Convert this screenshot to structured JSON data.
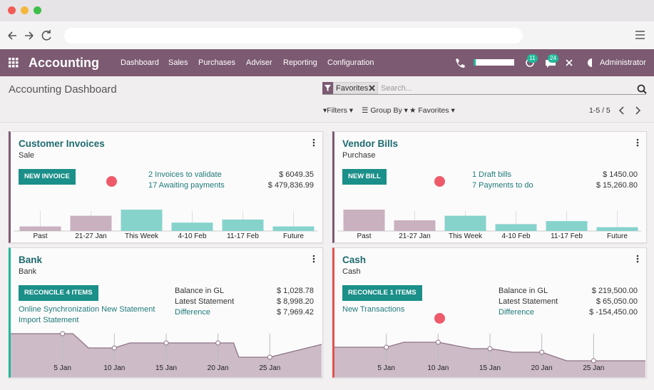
{
  "navbar": {
    "app": "Accounting",
    "menu": [
      "Dashboard",
      "Sales",
      "Purchases",
      "Adviser",
      "Reporting",
      "Configuration"
    ],
    "badges": [
      11,
      24
    ],
    "user": "Administrator"
  },
  "control_panel": {
    "title": "Accounting Dashboard",
    "facet": "Favorites",
    "search_placeholder": "Search...",
    "filters": [
      "Filters",
      "Group By",
      "Favorites"
    ],
    "pager": "1-5 / 5"
  },
  "journals": [
    {
      "name": "Customer Invoices",
      "type": "Sale",
      "accent": "#7c5a72",
      "button": "NEW INVOICE",
      "links": [],
      "rows": [
        {
          "label": "2 Invoices to validate",
          "amount": "$ 6049.35",
          "link": true
        },
        {
          "label": "17 Awaiting payments",
          "amount": "$ 479,836.99",
          "link": true
        }
      ],
      "chart": {
        "type": "bar",
        "categories": [
          "Past",
          "21-27 Jan",
          "This Week",
          "4-10 Feb",
          "11-17 Feb",
          "Future"
        ],
        "values": [
          6,
          20,
          28,
          11,
          15,
          6
        ],
        "colors": [
          "#c9b1bf",
          "#c9b1bf",
          "#86d3cc",
          "#86d3cc",
          "#86d3cc",
          "#86d3cc"
        ]
      }
    },
    {
      "name": "Vendor Bills",
      "type": "Purchase",
      "accent": "#7c5a72",
      "button": "NEW BILL",
      "links": [],
      "rows": [
        {
          "label": "1 Draft bills",
          "amount": "$ 1450.00",
          "link": true
        },
        {
          "label": "7 Payments to do",
          "amount": "$ 15,260.80",
          "link": true
        }
      ],
      "chart": {
        "type": "bar",
        "categories": [
          "Past",
          "21-27 Jan",
          "This Week",
          "4-10 Feb",
          "11-17 Feb",
          "Future"
        ],
        "values": [
          28,
          14,
          20,
          9,
          13,
          5
        ],
        "colors": [
          "#c9b1bf",
          "#c9b1bf",
          "#86d3cc",
          "#86d3cc",
          "#86d3cc",
          "#86d3cc"
        ]
      }
    },
    {
      "name": "Bank",
      "type": "Bank",
      "accent": "#21b799",
      "button": "RECONCILE 4 ITEMS",
      "links": [
        "Online Synchronization New Statement",
        "Import Statement"
      ],
      "rows": [
        {
          "label": "Balance in GL",
          "amount": "$ 1,028.78",
          "link": false
        },
        {
          "label": "Latest Statement",
          "amount": "$ 8,998.20",
          "link": false
        },
        {
          "label": "Difference",
          "amount": "$ 7,969.42",
          "link": true
        }
      ],
      "chart": {
        "type": "line",
        "x": [
          0,
          5,
          6,
          7.5,
          10,
          11.5,
          15,
          20,
          21.5,
          22,
          25,
          30
        ],
        "values": [
          61,
          61,
          61,
          41,
          41,
          48,
          48,
          48,
          48,
          28,
          28,
          46
        ],
        "xlim": [
          0,
          30
        ],
        "ylim": [
          0,
          72
        ],
        "xticks": [
          {
            "value": 5,
            "label": "5 Jan"
          },
          {
            "value": 10,
            "label": "10 Jan"
          },
          {
            "value": 15,
            "label": "15 Jan"
          },
          {
            "value": 20,
            "label": "20 Jan"
          },
          {
            "value": 25,
            "label": "25 Jan"
          }
        ],
        "color": "#8e7385",
        "fill": "#cdbcc7"
      }
    },
    {
      "name": "Cash",
      "type": "Cash",
      "accent": "#e0544f",
      "button": "RECONCILE 1 ITEMS",
      "links": [
        "New Transactions"
      ],
      "rows": [
        {
          "label": "Balance in GL",
          "amount": "$ 219,500.00",
          "link": false
        },
        {
          "label": "Latest Statement",
          "amount": "$ 65,050.00",
          "link": false
        },
        {
          "label": "Difference",
          "amount": "$ -154,450.00",
          "link": true
        }
      ],
      "chart": {
        "type": "line",
        "x": [
          0,
          5,
          6.7,
          10,
          13.2,
          15,
          17.2,
          20,
          22.4,
          25,
          30
        ],
        "values": [
          42,
          42,
          49,
          49,
          40,
          40,
          35,
          35,
          23,
          23,
          23
        ],
        "xlim": [
          0,
          30
        ],
        "ylim": [
          0,
          72
        ],
        "xticks": [
          {
            "value": 5,
            "label": "5 Jan"
          },
          {
            "value": 10,
            "label": "10 Jan"
          },
          {
            "value": 15,
            "label": "15 Jan"
          },
          {
            "value": 20,
            "label": "20 Jan"
          },
          {
            "value": 25,
            "label": "25 Jan"
          }
        ],
        "color": "#8e7385",
        "fill": "#cdbcc7"
      }
    }
  ]
}
